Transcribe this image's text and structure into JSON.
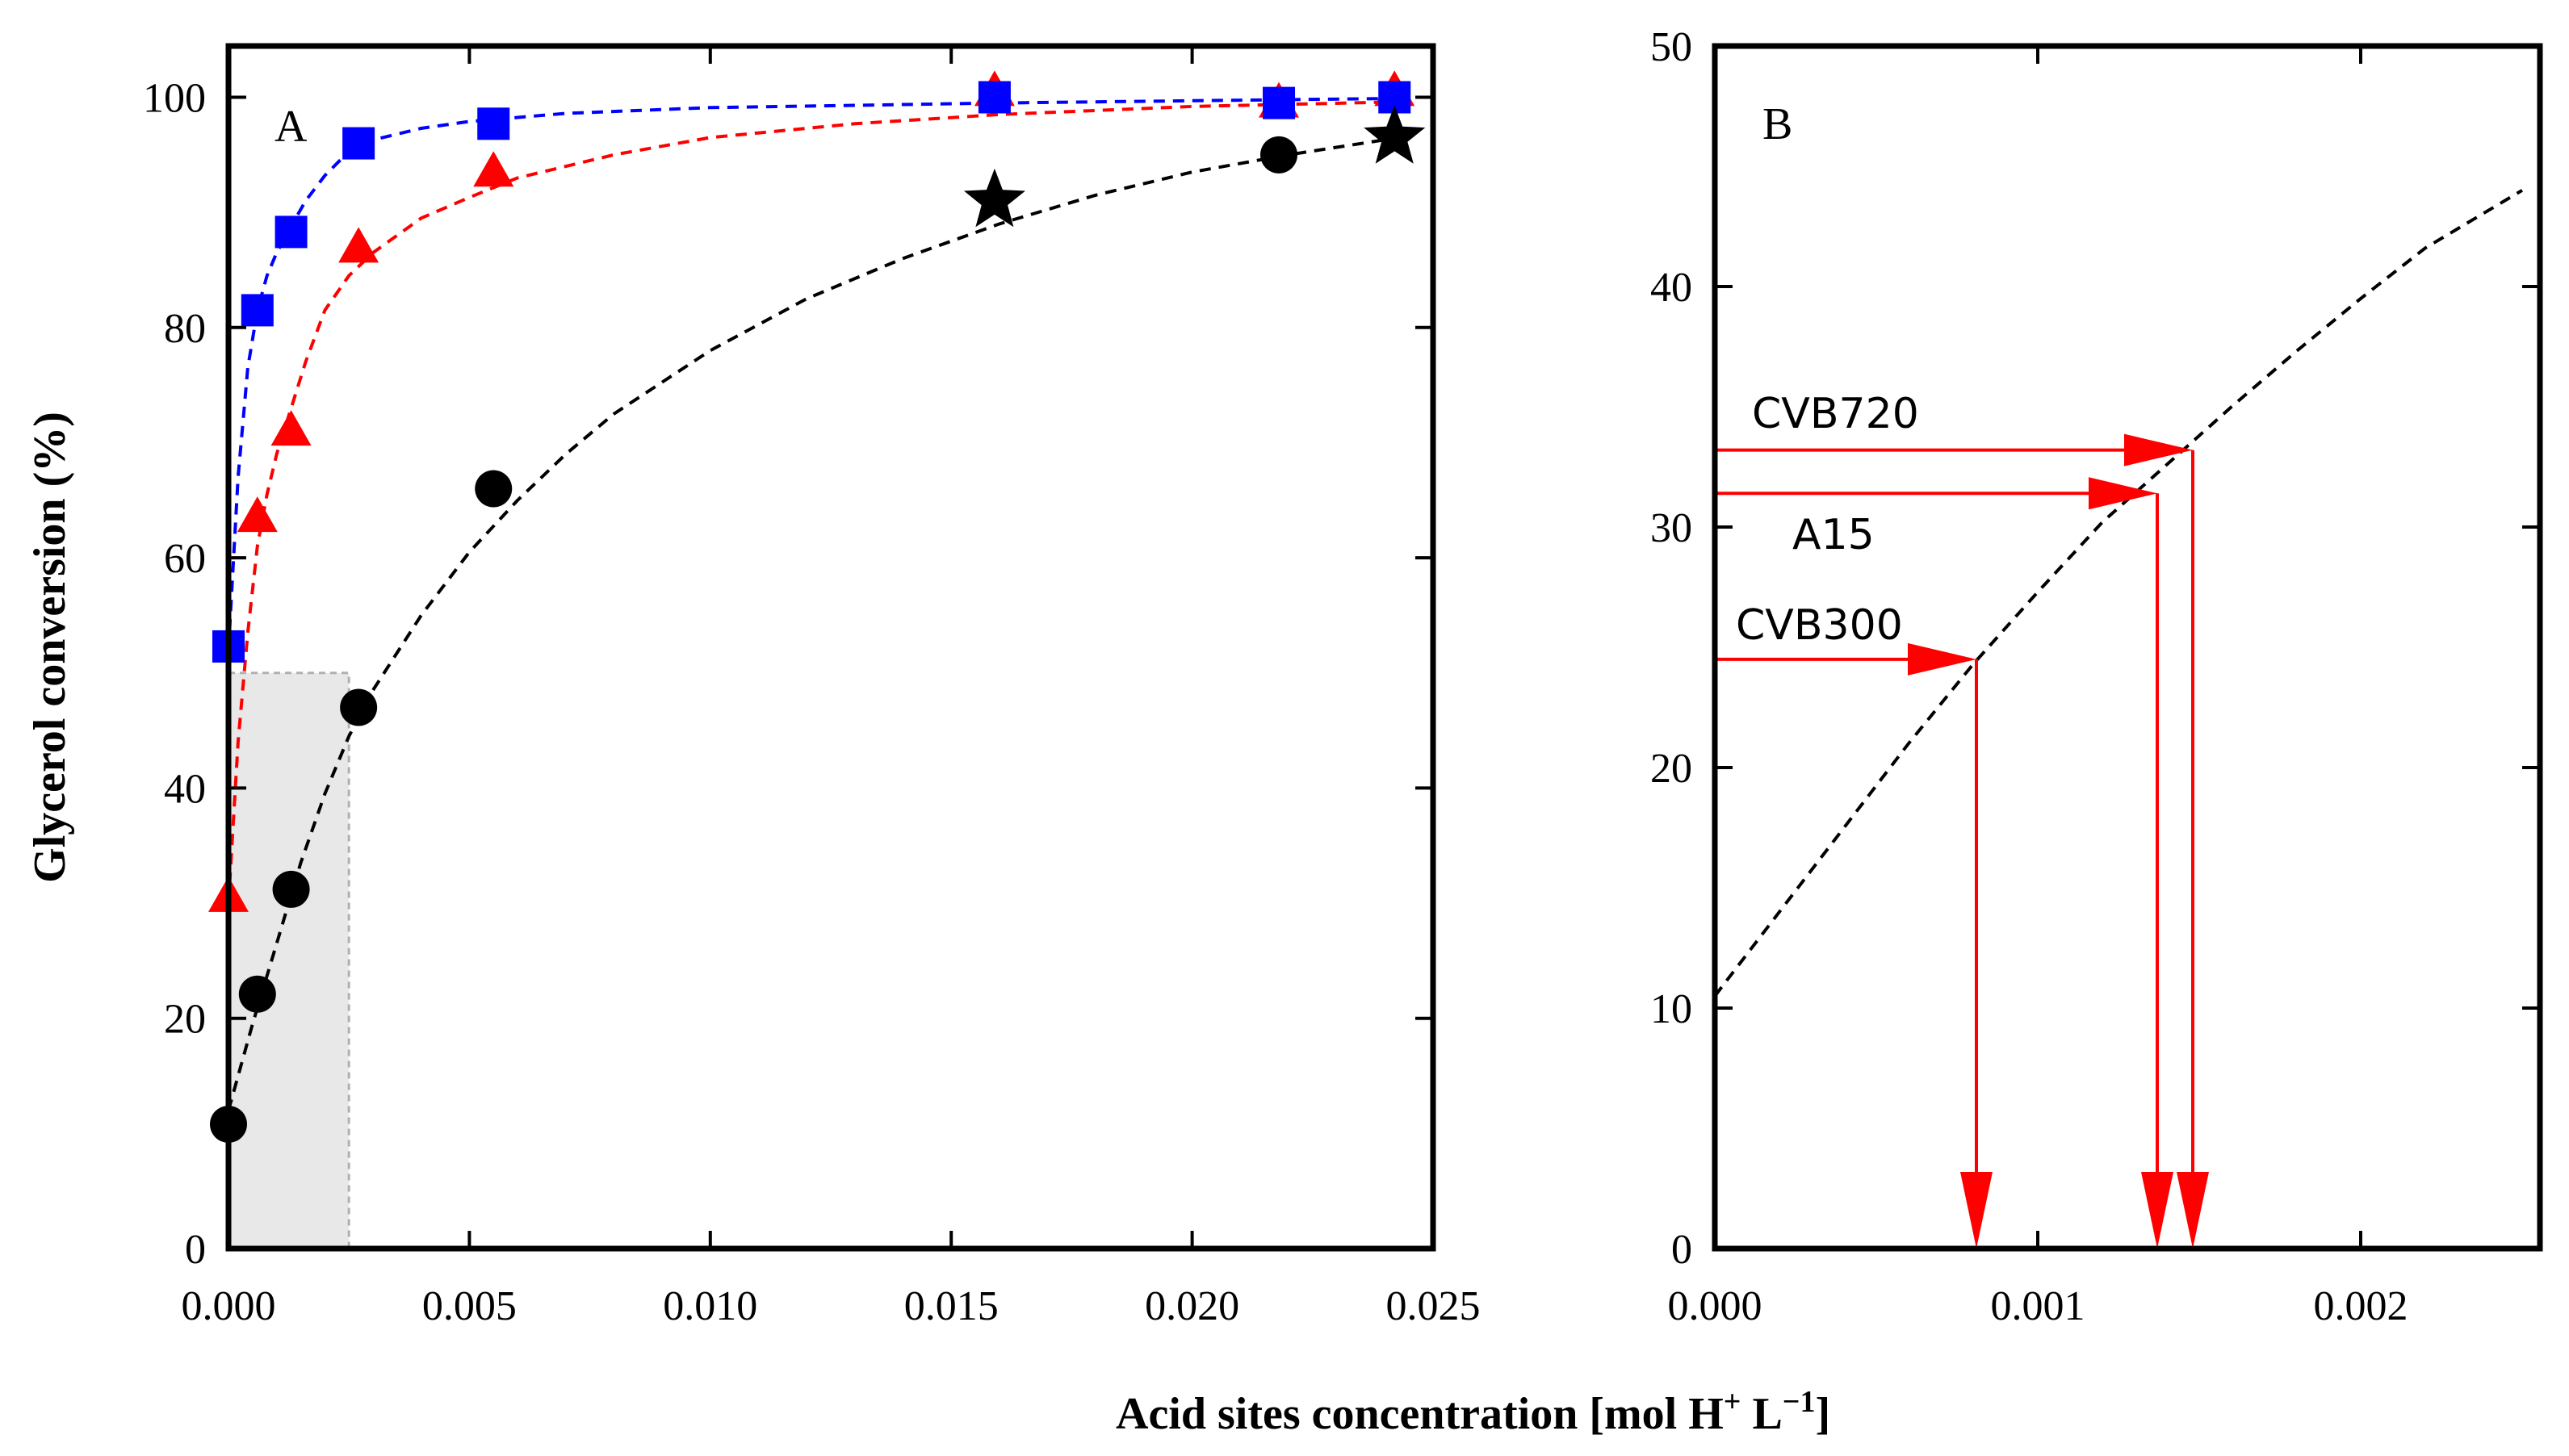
{
  "colors": {
    "blue": "#0000ff",
    "red": "#ff0000",
    "black": "#000000",
    "gray_fill": "#e8e8e8",
    "gray_edge": "#b0b0b0"
  },
  "xlabel_prefix": "Acid sites concentration [mol H",
  "xlabel_sup1": "+",
  "xlabel_mid": " L",
  "xlabel_sup2": "−1",
  "xlabel_suffix": "]",
  "chart_data": [
    {
      "type": "scatter",
      "panel": "A",
      "ylabel": "Glycerol conversion (%)",
      "xlim": [
        0,
        0.025
      ],
      "ylim": [
        0,
        105
      ],
      "xticks": [
        0,
        0.005,
        0.01,
        0.015,
        0.02,
        0.025
      ],
      "xtick_labels": [
        "0.000",
        "0.005",
        "0.010",
        "0.015",
        "0.020",
        "0.025"
      ],
      "yticks": [
        0,
        20,
        40,
        60,
        80,
        100
      ],
      "ytick_labels": [
        "0",
        "20",
        "40",
        "60",
        "80",
        "100"
      ],
      "shaded_region": {
        "x": [
          0,
          0.0025
        ],
        "y": [
          0,
          50
        ]
      },
      "series": [
        {
          "name": "blue squares",
          "marker": "square",
          "color": "#0000ff",
          "x": [
            0.0,
            0.0006,
            0.0013,
            0.0027,
            0.0055,
            0.0159,
            0.0218,
            0.0242
          ],
          "y": [
            52.3,
            81.5,
            88.3,
            96.0,
            97.7,
            100.0,
            99.5,
            100.0
          ],
          "fit": {
            "x": [
              0.0,
              0.0002,
              0.0004,
              0.0006,
              0.0008,
              0.001,
              0.0013,
              0.0016,
              0.002,
              0.0025,
              0.003,
              0.004,
              0.005,
              0.007,
              0.01,
              0.013,
              0.016,
              0.02,
              0.0243
            ],
            "y": [
              52.0,
              67.0,
              76.5,
              81.5,
              84.5,
              86.5,
              88.8,
              91.0,
              93.2,
              95.3,
              96.3,
              97.3,
              97.9,
              98.6,
              99.1,
              99.3,
              99.5,
              99.7,
              99.9
            ]
          }
        },
        {
          "name": "red triangles",
          "marker": "triangle",
          "color": "#ff0000",
          "x": [
            0.0,
            0.0006,
            0.0013,
            0.0027,
            0.0055,
            0.0159,
            0.0218,
            0.0242
          ],
          "y": [
            30.5,
            63.5,
            71.0,
            86.9,
            93.5,
            100.5,
            99.5,
            100.5
          ],
          "fit": {
            "x": [
              0.0,
              0.0002,
              0.0004,
              0.0006,
              0.0008,
              0.001,
              0.0013,
              0.0016,
              0.002,
              0.0025,
              0.003,
              0.004,
              0.005,
              0.006,
              0.008,
              0.01,
              0.013,
              0.016,
              0.02,
              0.0243
            ],
            "y": [
              30.0,
              44.0,
              53.5,
              61.0,
              65.5,
              69.0,
              73.0,
              77.0,
              81.5,
              84.5,
              86.5,
              89.5,
              91.3,
              93.0,
              95.0,
              96.5,
              97.7,
              98.5,
              99.2,
              99.6
            ]
          }
        },
        {
          "name": "black circles",
          "marker": "circle",
          "color": "#000000",
          "x": [
            0.0,
            0.0006,
            0.0013,
            0.0027,
            0.0055,
            0.0218
          ],
          "y": [
            10.8,
            22.1,
            31.2,
            47.0,
            66.0,
            95.0
          ]
        },
        {
          "name": "black stars",
          "marker": "star",
          "color": "#000000",
          "x": [
            0.0159,
            0.0242
          ],
          "y": [
            91.0,
            96.5
          ]
        }
      ],
      "black_fit": {
        "x": [
          0.0,
          0.0005,
          0.001,
          0.0015,
          0.002,
          0.0025,
          0.003,
          0.004,
          0.005,
          0.006,
          0.007,
          0.008,
          0.01,
          0.012,
          0.014,
          0.016,
          0.018,
          0.02,
          0.022,
          0.0243
        ],
        "y": [
          12.0,
          19.5,
          26.5,
          33.5,
          39.5,
          44.5,
          48.5,
          55.0,
          60.5,
          65.0,
          69.0,
          72.5,
          78.0,
          82.5,
          86.0,
          89.0,
          91.5,
          93.5,
          95.0,
          96.5
        ]
      }
    },
    {
      "type": "line",
      "panel": "B",
      "xlim": [
        0,
        0.0025
      ],
      "ylim": [
        0,
        50
      ],
      "xticks": [
        0,
        0.001,
        0.002
      ],
      "xtick_labels": [
        "0.000",
        "0.001",
        "0.002"
      ],
      "yticks": [
        0,
        10,
        20,
        30,
        40,
        50
      ],
      "ytick_labels": [
        "0",
        "10",
        "20",
        "30",
        "40",
        "50"
      ],
      "line": {
        "x": [
          0.0,
          0.0002,
          0.0004,
          0.0006,
          0.0008,
          0.001,
          0.0012,
          0.0014,
          0.0016,
          0.0018,
          0.002,
          0.0022,
          0.0025
        ],
        "y": [
          10.5,
          14.0,
          17.5,
          21.0,
          24.3,
          27.3,
          30.2,
          32.6,
          35.0,
          37.3,
          39.5,
          41.6,
          44.0
        ]
      },
      "markers": [
        {
          "label": "CVB720",
          "x": 0.00148,
          "y": 33.2
        },
        {
          "label": "A15",
          "x": 0.00137,
          "y": 31.4
        },
        {
          "label": "CVB300",
          "x": 0.00081,
          "y": 24.5
        }
      ]
    }
  ]
}
